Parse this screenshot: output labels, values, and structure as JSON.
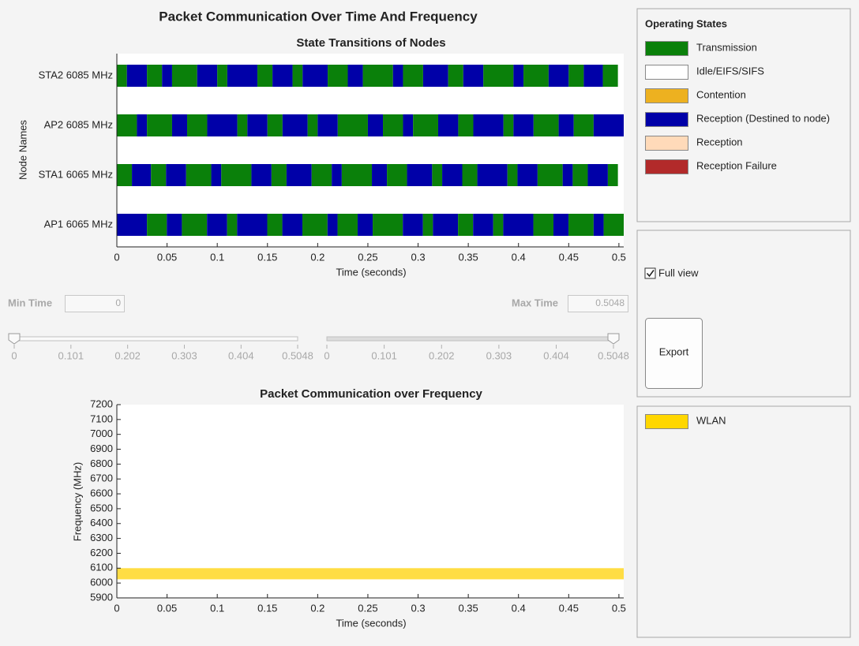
{
  "title": "Packet Communication Over Time And Frequency",
  "chart_data": [
    {
      "type": "state",
      "title": "State Transitions of Nodes",
      "xlabel": "Time (seconds)",
      "ylabel": "Node Names",
      "xlim": [
        0,
        0.5048
      ],
      "xticks": [
        0,
        0.05,
        0.1,
        0.15,
        0.2,
        0.25,
        0.3,
        0.35,
        0.4,
        0.45,
        0.5
      ],
      "nodes": [
        {
          "name": "STA2 6085 MHz",
          "state_cycle": [
            0,
            3
          ],
          "durations": [
            0.01,
            0.02,
            0.015,
            0.01,
            0.025,
            0.02,
            0.01,
            0.03,
            0.015,
            0.02,
            0.01,
            0.025,
            0.02,
            0.015,
            0.03,
            0.01,
            0.02,
            0.025,
            0.015,
            0.02,
            0.03,
            0.01,
            0.025,
            0.02,
            0.015,
            0.019,
            0.015
          ]
        },
        {
          "name": "AP2 6085 MHz",
          "state_cycle": [
            0,
            3
          ],
          "durations": [
            0.02,
            0.01,
            0.025,
            0.015,
            0.02,
            0.03,
            0.01,
            0.02,
            0.015,
            0.025,
            0.01,
            0.02,
            0.03,
            0.015,
            0.02,
            0.01,
            0.025,
            0.02,
            0.015,
            0.03,
            0.01,
            0.02,
            0.025,
            0.015,
            0.0198,
            0.03
          ]
        },
        {
          "name": "STA1 6065 MHz",
          "state_cycle": [
            0,
            3
          ],
          "durations": [
            0.015,
            0.019,
            0.015,
            0.02,
            0.025,
            0.01,
            0.03,
            0.02,
            0.015,
            0.025,
            0.02,
            0.01,
            0.03,
            0.015,
            0.02,
            0.025,
            0.01,
            0.02,
            0.015,
            0.03,
            0.01,
            0.02,
            0.025,
            0.01,
            0.015,
            0.02,
            0.01
          ]
        },
        {
          "name": "AP1 6065 MHz",
          "state_cycle": [
            3,
            0
          ],
          "durations": [
            0.03,
            0.0198,
            0.015,
            0.025,
            0.02,
            0.01,
            0.03,
            0.015,
            0.02,
            0.025,
            0.01,
            0.02,
            0.015,
            0.03,
            0.02,
            0.01,
            0.025,
            0.015,
            0.02,
            0.01,
            0.03,
            0.02,
            0.015,
            0.025,
            0.01,
            0.02
          ]
        }
      ]
    },
    {
      "type": "band",
      "title": "Packet Communication over Frequency",
      "xlabel": "Time (seconds)",
      "ylabel": "Frequency (MHz)",
      "xlim": [
        0,
        0.5048
      ],
      "xticks": [
        0,
        0.05,
        0.1,
        0.15,
        0.2,
        0.25,
        0.3,
        0.35,
        0.4,
        0.45,
        0.5
      ],
      "ylim": [
        5900,
        7200
      ],
      "yticks": [
        5900,
        6000,
        6100,
        6200,
        6300,
        6400,
        6500,
        6600,
        6700,
        6800,
        6900,
        7000,
        7100,
        7200
      ],
      "band": {
        "x": [
          0,
          0.5048
        ],
        "y": [
          6025,
          6100
        ]
      },
      "color": "#ffdd44"
    }
  ],
  "controls": {
    "min_label": "Min Time",
    "min_value": 0,
    "max_label": "Max Time",
    "max_value": 0.5048,
    "slider_ticks": [
      0,
      0.101,
      0.202,
      0.303,
      0.404,
      0.5048
    ],
    "full_view": "Full view",
    "export": "Export"
  },
  "legend": {
    "title": "Operating States",
    "items": [
      {
        "name": "Transmission",
        "color": "#0a800a"
      },
      {
        "name": "Idle/EIFS/SIFS",
        "color": "#ffffff"
      },
      {
        "name": "Contention",
        "color": "#edb120"
      },
      {
        "name": "Reception (Destined to node)",
        "color": "#0000a8"
      },
      {
        "name": "Reception",
        "color": "#ffdab9"
      },
      {
        "name": "Reception Failure",
        "color": "#b22a2a"
      }
    ]
  },
  "tech_legend": {
    "items": [
      {
        "name": "WLAN",
        "color": "#ffd700"
      }
    ]
  }
}
